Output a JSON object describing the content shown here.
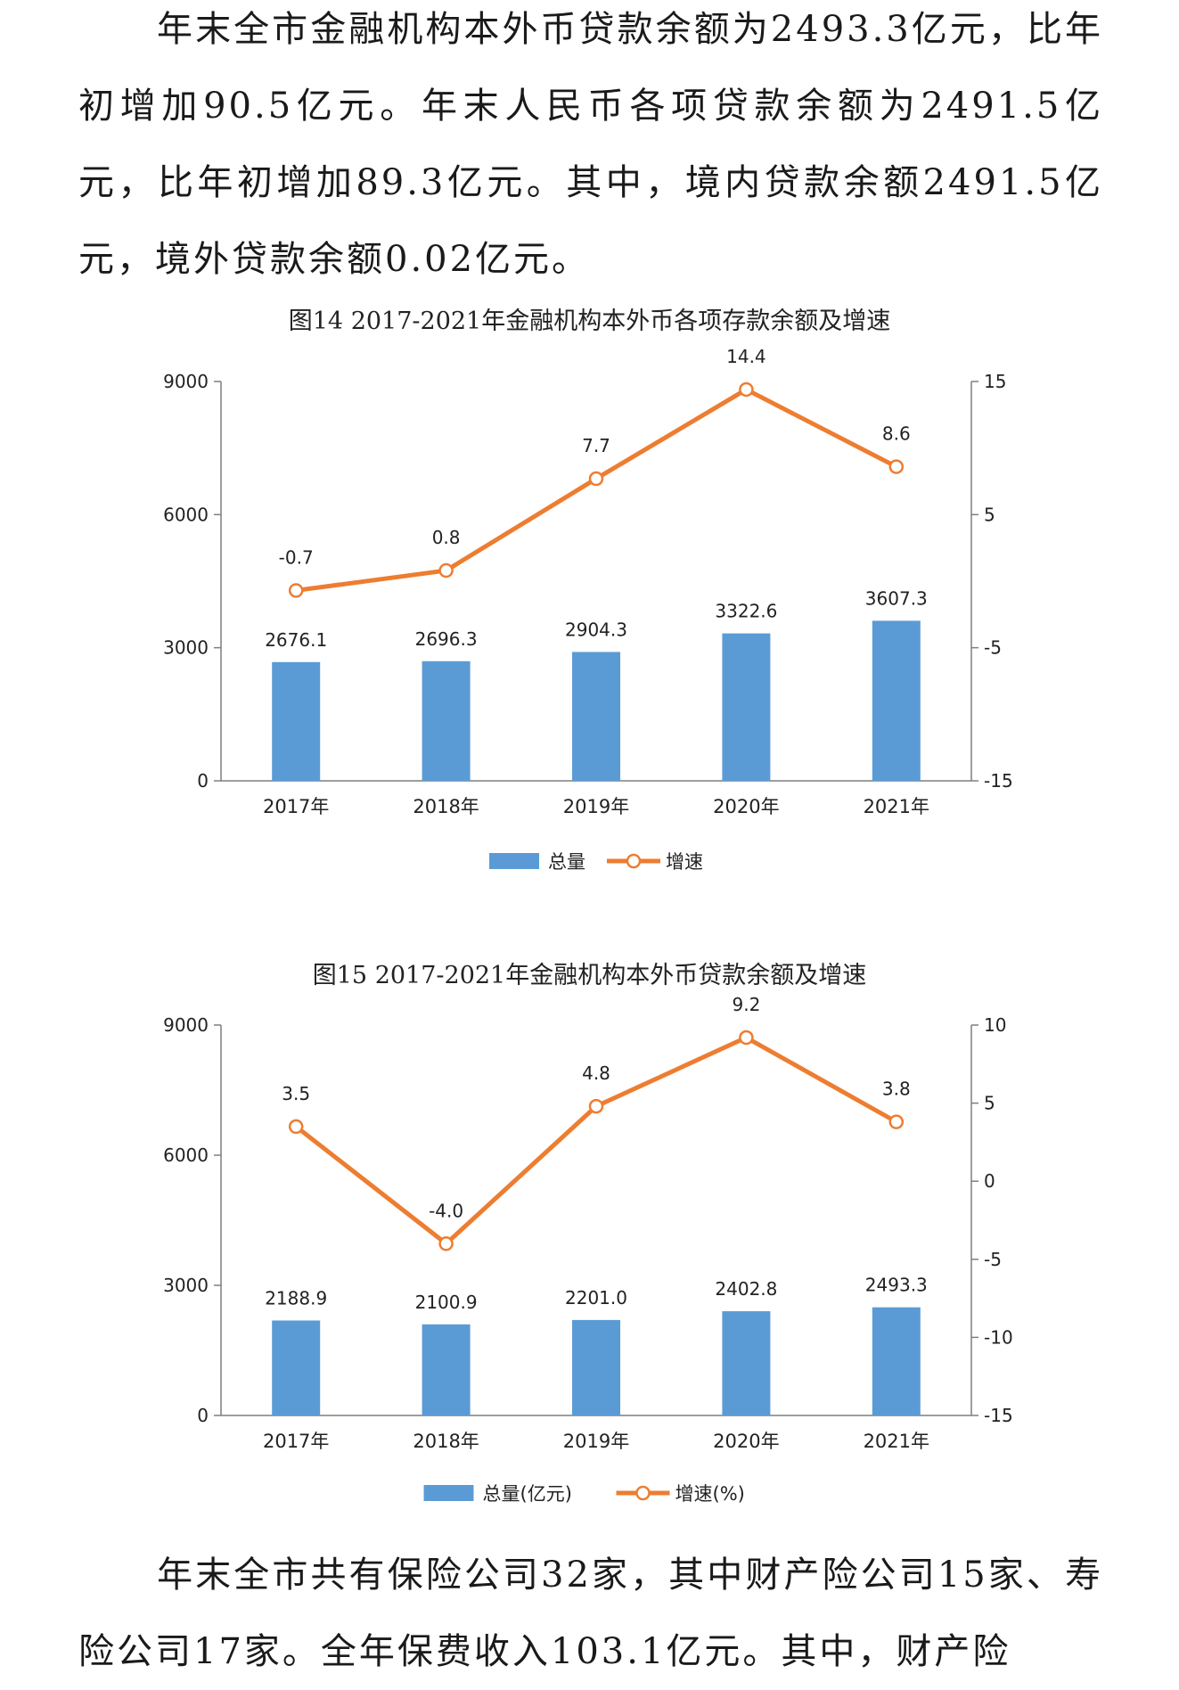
{
  "paragraphs": {
    "top": "年末全市金融机构本外币贷款余额为2493.3亿元，比年初增加90.5亿元。年末人民币各项贷款余额为2491.5亿元，比年初增加89.3亿元。其中，境内贷款余额2491.5亿元，境外贷款余额0.02亿元。",
    "bottom": "年末全市共有保险公司32家，其中财产险公司15家、寿险公司17家。全年保费收入103.1亿元。其中，财产险"
  },
  "figures": {
    "fig14_title": "图14 2017-2021年金融机构本外币各项存款余额及增速",
    "fig15_title": "图15 2017-2021年金融机构本外币贷款余额及增速"
  },
  "chart_data": [
    {
      "id": "fig14",
      "type": "bar+line",
      "categories": [
        "2017年",
        "2018年",
        "2019年",
        "2020年",
        "2021年"
      ],
      "series": [
        {
          "name": "总量",
          "type": "bar",
          "axis": "left",
          "values": [
            2676.1,
            2696.3,
            2904.3,
            3322.6,
            3607.3
          ],
          "labels": [
            "2676.1",
            "2696.3",
            "2904.3",
            "3322.6",
            "3607.3"
          ]
        },
        {
          "name": "增速",
          "type": "line",
          "axis": "right",
          "values": [
            -0.7,
            0.8,
            7.7,
            14.4,
            8.6
          ],
          "labels": [
            "-0.7",
            "0.8",
            "7.7",
            "14.4",
            "8.6"
          ]
        }
      ],
      "left_axis": {
        "min": 0,
        "max": 9000,
        "ticks": [
          0,
          3000,
          6000,
          9000
        ]
      },
      "right_axis": {
        "min": -15,
        "max": 15,
        "ticks": [
          -15,
          -5,
          5,
          15
        ]
      },
      "legend": [
        "总量",
        "增速"
      ],
      "colors": {
        "bar": "#5b9bd5",
        "line": "#ed7d31"
      }
    },
    {
      "id": "fig15",
      "type": "bar+line",
      "categories": [
        "2017年",
        "2018年",
        "2019年",
        "2020年",
        "2021年"
      ],
      "series": [
        {
          "name": "总量(亿元)",
          "type": "bar",
          "axis": "left",
          "values": [
            2188.9,
            2100.9,
            2201.0,
            2402.8,
            2493.3
          ],
          "labels": [
            "2188.9",
            "2100.9",
            "2201.0",
            "2402.8",
            "2493.3"
          ]
        },
        {
          "name": "增速(%)",
          "type": "line",
          "axis": "right",
          "values": [
            3.5,
            -4.0,
            4.8,
            9.2,
            3.8
          ],
          "labels": [
            "3.5",
            "-4.0",
            "4.8",
            "9.2",
            "3.8"
          ]
        }
      ],
      "left_axis": {
        "min": 0,
        "max": 9000,
        "ticks": [
          0,
          3000,
          6000,
          9000
        ]
      },
      "right_axis": {
        "min": -15,
        "max": 10,
        "ticks": [
          -15,
          -10,
          -5,
          0,
          5,
          10
        ]
      },
      "legend": [
        "总量(亿元)",
        "增速(%)"
      ],
      "colors": {
        "bar": "#5b9bd5",
        "line": "#ed7d31"
      }
    }
  ]
}
